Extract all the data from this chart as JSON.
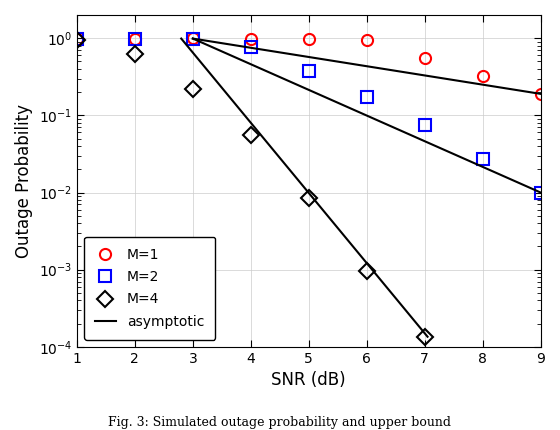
{
  "xlabel": "SNR (dB)",
  "ylabel": "Outage Probability",
  "xlim": [
    1,
    9
  ],
  "ylim": [
    0.0001,
    2.0
  ],
  "xticks": [
    1,
    2,
    3,
    4,
    5,
    6,
    7,
    8,
    9
  ],
  "M1_snr": [
    1,
    2,
    3,
    4,
    5,
    6,
    7,
    8,
    9
  ],
  "M1_prob": [
    0.975,
    0.99,
    0.995,
    0.99,
    0.99,
    0.96,
    0.55,
    0.32,
    0.19
  ],
  "M2_snr": [
    1,
    2,
    3,
    4,
    5,
    6,
    7,
    8,
    9
  ],
  "M2_prob": [
    0.99,
    0.99,
    0.99,
    0.78,
    0.38,
    0.175,
    0.075,
    0.027,
    0.01
  ],
  "M4_snr": [
    1,
    2,
    3,
    4,
    5,
    6,
    7
  ],
  "M4_prob": [
    0.96,
    0.62,
    0.22,
    0.055,
    0.0085,
    0.00095,
    0.000135
  ],
  "asym_M1_snr": [
    3.0,
    9.0
  ],
  "asym_M1_prob": [
    0.99,
    0.19
  ],
  "asym_M2_snr": [
    3.0,
    9.0
  ],
  "asym_M2_prob": [
    0.99,
    0.01
  ],
  "asym_M4_snr": [
    2.8,
    7.05
  ],
  "asym_M4_prob": [
    0.99,
    0.000135
  ],
  "M1_color": "#ff0000",
  "M2_color": "#0000ff",
  "M4_color": "#000000",
  "asym_color": "#000000",
  "marker_M1": "o",
  "marker_M2": "s",
  "marker_M4": "D",
  "markersize": 8,
  "markeredgewidth": 1.5,
  "linewidth": 1.5,
  "legend_loc": "lower left",
  "caption": "Fig. 3: Simulated outage probability and upper bound"
}
